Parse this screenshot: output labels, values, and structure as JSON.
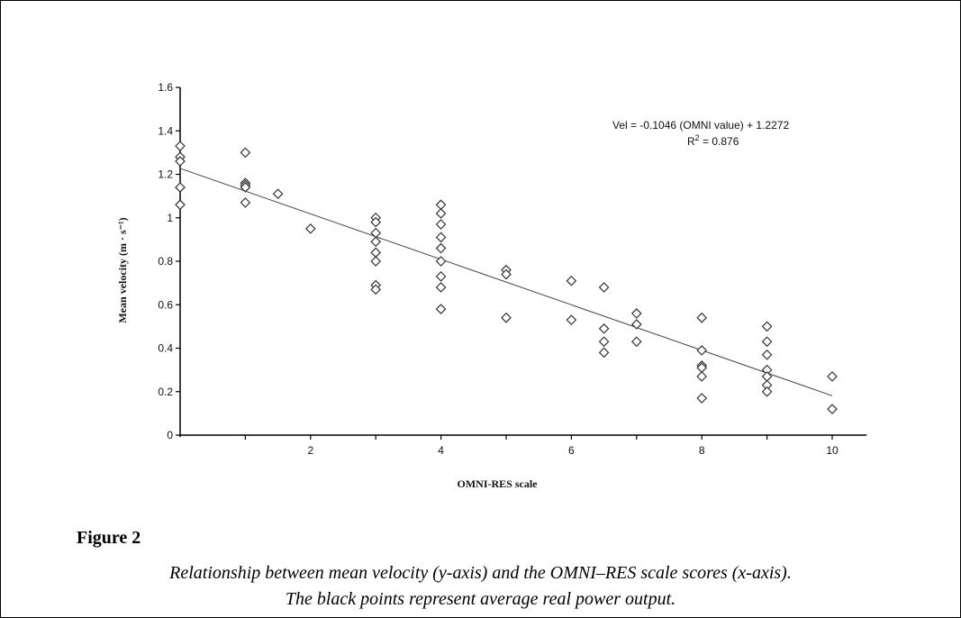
{
  "chart_data": {
    "type": "scatter",
    "xlabel": "OMNI-RES scale",
    "ylabel": "Mean velocity (m · s⁻¹)",
    "xlim": [
      0,
      10.5
    ],
    "ylim": [
      0,
      1.6
    ],
    "x_ticks": [
      2,
      4,
      6,
      8,
      10
    ],
    "x_tick_labels": [
      "2",
      "4",
      "6",
      "8",
      "10"
    ],
    "y_ticks": [
      0,
      0.2,
      0.4,
      0.6,
      0.8,
      1.0,
      1.2,
      1.4,
      1.6
    ],
    "y_tick_labels": [
      "0",
      "0.2",
      "0.4",
      "0.6",
      "0.8",
      "1",
      "1.2",
      "1.4",
      "1.6"
    ],
    "marker": "diamond-open",
    "points": [
      {
        "x": 0,
        "y": 1.33
      },
      {
        "x": 0,
        "y": 1.28
      },
      {
        "x": 0,
        "y": 1.26
      },
      {
        "x": 0,
        "y": 1.14
      },
      {
        "x": 0,
        "y": 1.06
      },
      {
        "x": 1,
        "y": 1.3
      },
      {
        "x": 1,
        "y": 1.16
      },
      {
        "x": 1,
        "y": 1.15
      },
      {
        "x": 1,
        "y": 1.14
      },
      {
        "x": 1,
        "y": 1.07
      },
      {
        "x": 1.5,
        "y": 1.11
      },
      {
        "x": 2,
        "y": 0.95
      },
      {
        "x": 3,
        "y": 1.0
      },
      {
        "x": 3,
        "y": 0.98
      },
      {
        "x": 3,
        "y": 0.93
      },
      {
        "x": 3,
        "y": 0.89
      },
      {
        "x": 3,
        "y": 0.84
      },
      {
        "x": 3,
        "y": 0.8
      },
      {
        "x": 3,
        "y": 0.69
      },
      {
        "x": 3,
        "y": 0.67
      },
      {
        "x": 4,
        "y": 1.06
      },
      {
        "x": 4,
        "y": 1.02
      },
      {
        "x": 4,
        "y": 0.97
      },
      {
        "x": 4,
        "y": 0.91
      },
      {
        "x": 4,
        "y": 0.86
      },
      {
        "x": 4,
        "y": 0.8
      },
      {
        "x": 4,
        "y": 0.73
      },
      {
        "x": 4,
        "y": 0.68
      },
      {
        "x": 4,
        "y": 0.58
      },
      {
        "x": 5,
        "y": 0.76
      },
      {
        "x": 5,
        "y": 0.74
      },
      {
        "x": 5,
        "y": 0.54
      },
      {
        "x": 6,
        "y": 0.71
      },
      {
        "x": 6,
        "y": 0.53
      },
      {
        "x": 6.5,
        "y": 0.68
      },
      {
        "x": 6.5,
        "y": 0.49
      },
      {
        "x": 6.5,
        "y": 0.43
      },
      {
        "x": 6.5,
        "y": 0.38
      },
      {
        "x": 7,
        "y": 0.56
      },
      {
        "x": 7,
        "y": 0.51
      },
      {
        "x": 7,
        "y": 0.43
      },
      {
        "x": 8,
        "y": 0.54
      },
      {
        "x": 8,
        "y": 0.39
      },
      {
        "x": 8,
        "y": 0.32
      },
      {
        "x": 8,
        "y": 0.31
      },
      {
        "x": 8,
        "y": 0.27
      },
      {
        "x": 8,
        "y": 0.17
      },
      {
        "x": 9,
        "y": 0.5
      },
      {
        "x": 9,
        "y": 0.43
      },
      {
        "x": 9,
        "y": 0.37
      },
      {
        "x": 9,
        "y": 0.3
      },
      {
        "x": 9,
        "y": 0.27
      },
      {
        "x": 9,
        "y": 0.23
      },
      {
        "x": 9,
        "y": 0.2
      },
      {
        "x": 10,
        "y": 0.27
      },
      {
        "x": 10,
        "y": 0.12
      }
    ],
    "trendline": {
      "slope": -0.1046,
      "intercept": 1.2272,
      "x_range": [
        0,
        10
      ]
    },
    "annotations": {
      "equation": "Vel = -0.1046 (OMNI value) + 1.2272",
      "r2_prefix": "R",
      "r2_sup": "2",
      "r2_value": " = 0.876"
    }
  },
  "figure": {
    "title": "Figure 2",
    "caption_line1": "Relationship between mean velocity (y-axis) and the OMNI–RES scale scores (x-axis).",
    "caption_line2": "The black points represent average real power output."
  }
}
